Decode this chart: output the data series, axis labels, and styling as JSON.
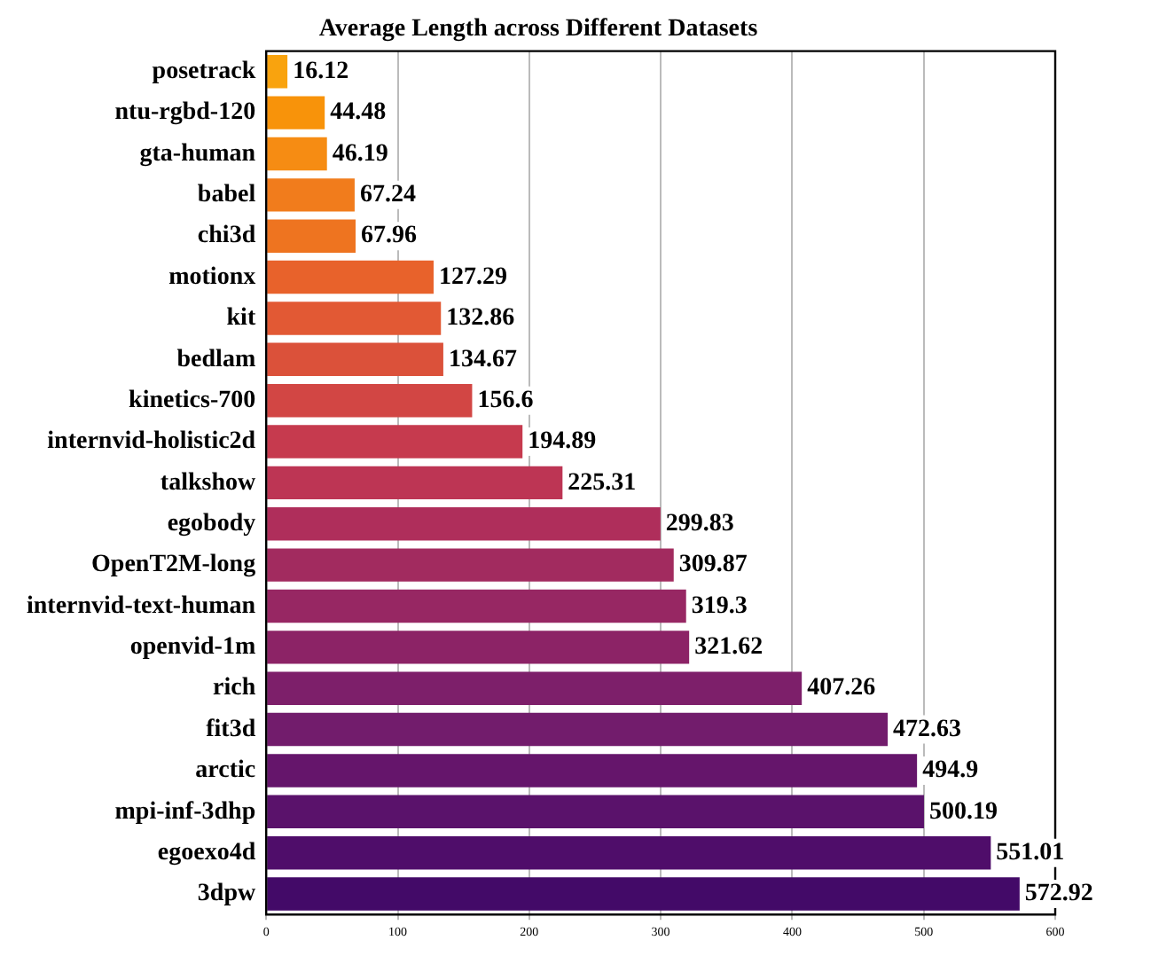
{
  "chart_data": {
    "type": "bar",
    "orientation": "horizontal",
    "title": "Average Length across Different Datasets",
    "categories": [
      "posetrack",
      "ntu-rgbd-120",
      "gta-human",
      "babel",
      "chi3d",
      "motionx",
      "kit",
      "bedlam",
      "kinetics-700",
      "internvid-holistic2d",
      "talkshow",
      "egobody",
      "OpenT2M-long",
      "internvid-text-human",
      "openvid-1m",
      "rich",
      "fit3d",
      "arctic",
      "mpi-inf-3dhp",
      "egoexo4d",
      "3dpw"
    ],
    "values": [
      16.12,
      44.48,
      46.19,
      67.24,
      67.96,
      127.29,
      132.86,
      134.67,
      156.6,
      194.89,
      225.31,
      299.83,
      309.87,
      319.3,
      321.62,
      407.26,
      472.63,
      494.9,
      500.19,
      551.01,
      572.92
    ],
    "colors": [
      "#f9a30e",
      "#f8930a",
      "#f68c13",
      "#f17c1c",
      "#ee7420",
      "#e8622b",
      "#e25934",
      "#db513a",
      "#d24644",
      "#c63a4e",
      "#bd3554",
      "#af2e5b",
      "#a22b5f",
      "#972763",
      "#8c2366",
      "#7d1f6a",
      "#721c6c",
      "#65156b",
      "#5a126b",
      "#4f0d6a",
      "#430a68"
    ],
    "data_labels": true,
    "xlim": [
      0,
      600
    ],
    "xticks": [
      0,
      100,
      200,
      300,
      400,
      500,
      600
    ],
    "grid": "x",
    "legend": false
  }
}
